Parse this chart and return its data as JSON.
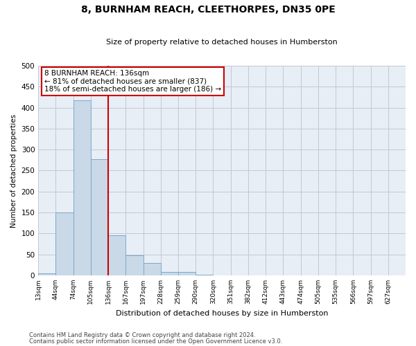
{
  "title": "8, BURNHAM REACH, CLEETHORPES, DN35 0PE",
  "subtitle": "Size of property relative to detached houses in Humberston",
  "xlabel": "Distribution of detached houses by size in Humberston",
  "ylabel": "Number of detached properties",
  "footnote1": "Contains HM Land Registry data © Crown copyright and database right 2024.",
  "footnote2": "Contains public sector information licensed under the Open Government Licence v3.0.",
  "bar_labels": [
    "13sqm",
    "44sqm",
    "74sqm",
    "105sqm",
    "136sqm",
    "167sqm",
    "197sqm",
    "228sqm",
    "259sqm",
    "290sqm",
    "320sqm",
    "351sqm",
    "382sqm",
    "412sqm",
    "443sqm",
    "474sqm",
    "505sqm",
    "535sqm",
    "566sqm",
    "597sqm",
    "627sqm"
  ],
  "bar_values": [
    5,
    150,
    418,
    278,
    95,
    48,
    29,
    8,
    8,
    2,
    0,
    0,
    0,
    0,
    0,
    0,
    0,
    0,
    0,
    0,
    0
  ],
  "bar_color": "#c9d9e8",
  "bar_edge_color": "#7aaac8",
  "vline_x": 4,
  "vline_color": "#cc0000",
  "annotation_text": "8 BURNHAM REACH: 136sqm\n← 81% of detached houses are smaller (837)\n18% of semi-detached houses are larger (186) →",
  "annotation_box_color": "#ffffff",
  "annotation_box_edge": "#cc0000",
  "ylim": [
    0,
    500
  ],
  "yticks": [
    0,
    50,
    100,
    150,
    200,
    250,
    300,
    350,
    400,
    450,
    500
  ],
  "grid_color": "#c0c8d8",
  "background_color": "#e8eef5"
}
